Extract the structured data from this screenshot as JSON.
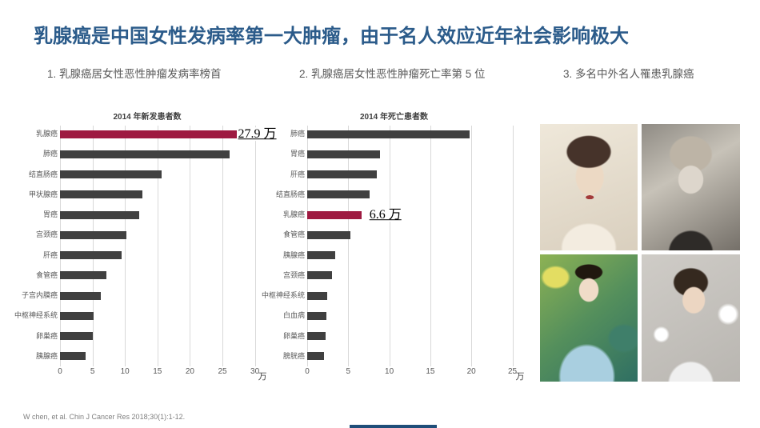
{
  "slide": {
    "title": "乳腺癌是中国女性发病率第一大肿瘤，由于名人效应近年社会影响极大",
    "footer": "W chen, et al. Chin J Cancer Res 2018;30(1):1-12."
  },
  "headings": [
    {
      "label": "1. 乳腺癌居女性恶性肿瘤发病率榜首"
    },
    {
      "label": "2. 乳腺癌居女性恶性肿瘤死亡率第 5 位"
    },
    {
      "label": "3. 多名中外名人罹患乳腺癌"
    }
  ],
  "colors": {
    "title_blue": "#2b5b8a",
    "highlight_crimson": "#9e1a41",
    "bar_gray": "#404040",
    "axis_text": "#595959",
    "scrollbar_navy": "#1f4e79"
  },
  "chart_data": [
    {
      "type": "bar",
      "orientation": "horizontal",
      "title": "2014 年新发患者数",
      "unit": "万",
      "categories": [
        "乳腺癌",
        "肺癌",
        "结直肠癌",
        "甲状腺癌",
        "胃癌",
        "宫颈癌",
        "肝癌",
        "食管癌",
        "子宫内膜癌",
        "中枢神经系统",
        "卵巢癌",
        "胰腺癌"
      ],
      "values": [
        27.9,
        26.1,
        15.6,
        12.7,
        12.2,
        10.2,
        9.5,
        7.2,
        6.3,
        5.2,
        5.0,
        4.0
      ],
      "highlight_category": "乳腺癌",
      "annotation": {
        "category": "乳腺癌",
        "text": "27.9 万"
      },
      "xlim": [
        0,
        30
      ],
      "xticks": [
        0,
        5,
        10,
        15,
        20,
        25,
        30
      ],
      "grid": true,
      "legend": "none"
    },
    {
      "type": "bar",
      "orientation": "horizontal",
      "title": "2014 年死亡患者数",
      "unit": "万",
      "categories": [
        "肺癌",
        "胃癌",
        "肝癌",
        "结直肠癌",
        "乳腺癌",
        "食管癌",
        "胰腺癌",
        "宫颈癌",
        "中枢神经系统",
        "白血病",
        "卵巢癌",
        "膀胱癌"
      ],
      "values": [
        19.8,
        8.9,
        8.5,
        7.6,
        6.6,
        5.3,
        3.4,
        3.0,
        2.4,
        2.3,
        2.2,
        2.0
      ],
      "highlight_category": "乳腺癌",
      "annotation": {
        "category": "乳腺癌",
        "text": "6.6 万"
      },
      "xlim": [
        0,
        25
      ],
      "xticks": [
        0,
        5,
        10,
        15,
        20,
        25
      ],
      "grid": true,
      "legend": "none"
    }
  ],
  "photos": {
    "items": [
      "celebrity-portrait-1",
      "celebrity-portrait-2",
      "celebrity-portrait-3",
      "celebrity-portrait-4"
    ]
  }
}
